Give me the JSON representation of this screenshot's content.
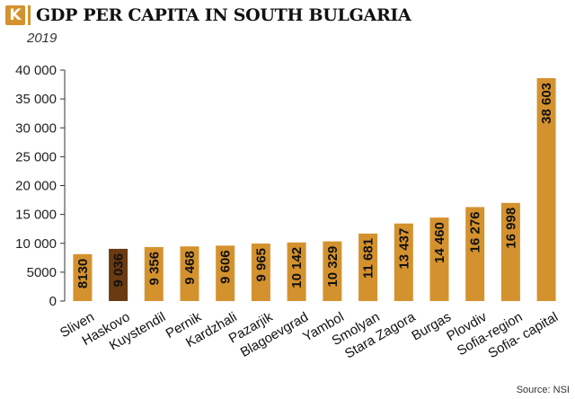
{
  "header": {
    "logo_letter": "K",
    "title": "GDP PER CAPITA IN SOUTH BULGARIA",
    "subtitle": "2019",
    "source": "Source: NSI"
  },
  "colors": {
    "bar": "#d4922e",
    "highlight": "#6a3a10",
    "axis": "#333333"
  },
  "chart_data": {
    "type": "bar",
    "title": "GDP PER CAPITA IN SOUTH BULGARIA",
    "subtitle": "2019",
    "xlabel": "",
    "ylabel": "",
    "ylim": [
      0,
      40000
    ],
    "yticks": [
      0,
      5000,
      10000,
      15000,
      20000,
      25000,
      30000,
      35000,
      40000
    ],
    "ytick_labels": [
      "0",
      "5000",
      "10 000",
      "15 000",
      "20 000",
      "25 000",
      "30 000",
      "35 000",
      "40 000"
    ],
    "grid": false,
    "categories": [
      "Sliven",
      "Haskovo",
      "Kuystendil",
      "Pernik",
      "Kardzhali",
      "Pazarjik",
      "Blagoevgrad",
      "Yambol",
      "Smolyan",
      "Stara Zagora",
      "Burgas",
      "Plovdiv",
      "Sofia-region",
      "Sofia- capital"
    ],
    "values": [
      8130,
      9036,
      9356,
      9468,
      9606,
      9965,
      10142,
      10329,
      11681,
      13437,
      14460,
      16276,
      16998,
      38603
    ],
    "value_labels": [
      "8130",
      "9 036",
      "9 356",
      "9 468",
      "9 606",
      "9 965",
      "10 142",
      "10 329",
      "11 681",
      "13 437",
      "14 460",
      "16 276",
      "16 998",
      "38 603"
    ],
    "highlight_category": "Haskovo"
  }
}
